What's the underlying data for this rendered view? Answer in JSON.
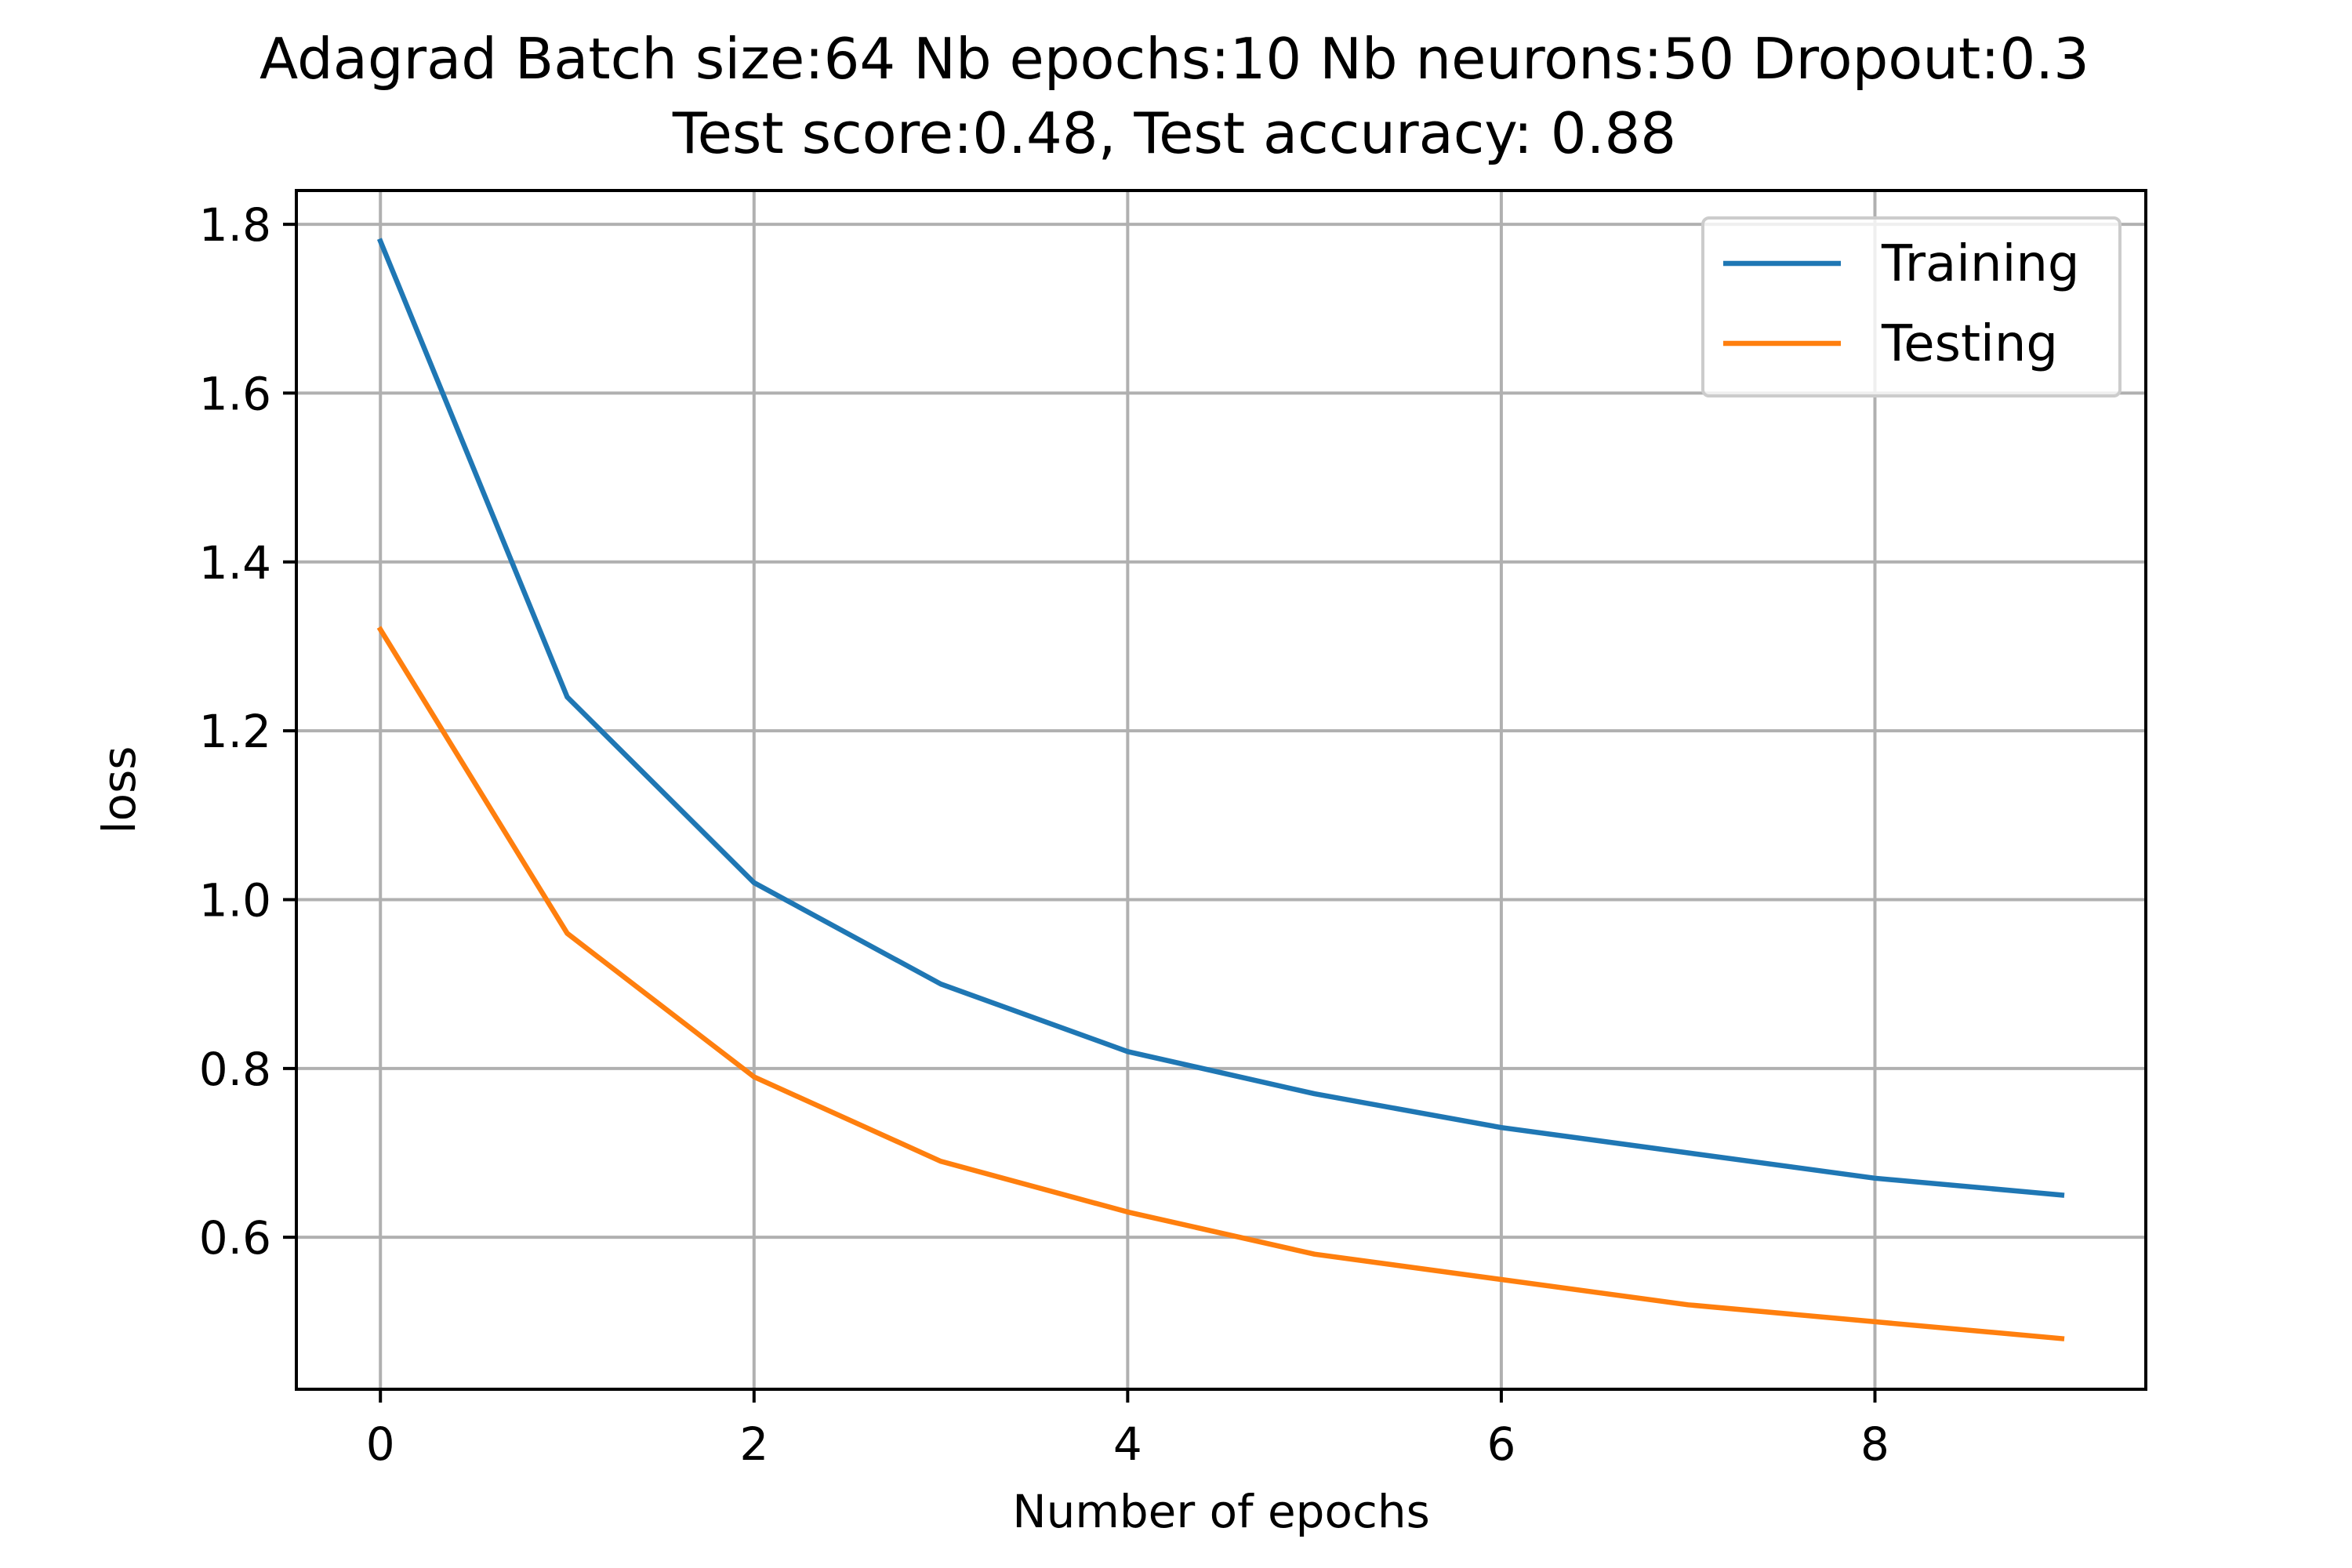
{
  "chart_data": {
    "type": "line",
    "title": "Adagrad Batch size:64 Nb epochs:10 Nb neurons:50 Dropout:0.3",
    "subtitle": "Test score:0.48, Test accuracy: 0.88",
    "xlabel": "Number of epochs",
    "ylabel": "loss",
    "x": [
      0,
      1,
      2,
      3,
      4,
      5,
      6,
      7,
      8,
      9
    ],
    "xlim": [
      -0.45,
      9.45
    ],
    "ylim": [
      0.42,
      1.84
    ],
    "xticks": [
      0,
      2,
      4,
      6,
      8
    ],
    "xtick_labels": [
      "0",
      "2",
      "4",
      "6",
      "8"
    ],
    "yticks": [
      0.6,
      0.8,
      1.0,
      1.2,
      1.4,
      1.6,
      1.8
    ],
    "ytick_labels": [
      "0.6",
      "0.8",
      "1.0",
      "1.2",
      "1.4",
      "1.6",
      "1.8"
    ],
    "grid": true,
    "legend_position": "top-right",
    "series": [
      {
        "name": "Training",
        "color": "#1f77b4",
        "values": [
          1.78,
          1.24,
          1.02,
          0.9,
          0.82,
          0.77,
          0.73,
          0.7,
          0.67,
          0.65
        ]
      },
      {
        "name": "Testing",
        "color": "#ff7f0e",
        "values": [
          1.32,
          0.96,
          0.79,
          0.69,
          0.63,
          0.58,
          0.55,
          0.52,
          0.5,
          0.48
        ]
      }
    ]
  }
}
